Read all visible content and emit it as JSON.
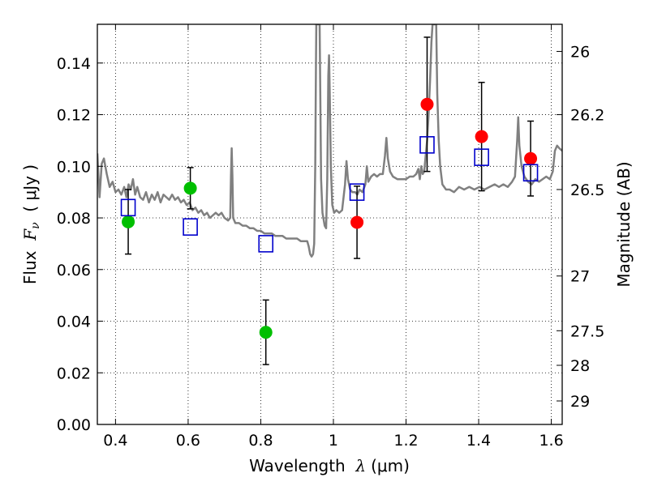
{
  "chart_data": {
    "type": "scatter",
    "xlabel_parts": {
      "prefix": "Wavelength  ",
      "var": "λ",
      "unit": "(μm)"
    },
    "ylabel_parts": {
      "prefix": "Flux  ",
      "var": "F",
      "sub": "ν",
      "unit": "  ( μJy )"
    },
    "ylabel_right": "Magnitude (AB)",
    "xlim": [
      0.35,
      1.63
    ],
    "ylim": [
      0.0,
      0.155
    ],
    "grid": true,
    "x_ticks": [
      {
        "value": 0.4,
        "label": "0.4"
      },
      {
        "value": 0.6,
        "label": "0.6"
      },
      {
        "value": 0.8,
        "label": "0.8"
      },
      {
        "value": 1.0,
        "label": "1"
      },
      {
        "value": 1.2,
        "label": "1.2"
      },
      {
        "value": 1.4,
        "label": "1.4"
      },
      {
        "value": 1.6,
        "label": "1.6"
      }
    ],
    "y_ticks": [
      {
        "value": 0.0,
        "label": "0.00"
      },
      {
        "value": 0.02,
        "label": "0.02"
      },
      {
        "value": 0.04,
        "label": "0.04"
      },
      {
        "value": 0.06,
        "label": "0.06"
      },
      {
        "value": 0.08,
        "label": "0.08"
      },
      {
        "value": 0.1,
        "label": "0.10"
      },
      {
        "value": 0.12,
        "label": "0.12"
      },
      {
        "value": 0.14,
        "label": "0.14"
      }
    ],
    "right_ticks": [
      {
        "flux": 0.1445,
        "label": "26"
      },
      {
        "flux": 0.12,
        "label": "26.2"
      },
      {
        "flux": 0.091,
        "label": "26.5"
      },
      {
        "flux": 0.0575,
        "label": "27"
      },
      {
        "flux": 0.0363,
        "label": "27.5"
      },
      {
        "flux": 0.0229,
        "label": "28"
      },
      {
        "flux": 0.0091,
        "label": "29"
      }
    ],
    "series": [
      {
        "marker": "circle",
        "color": "#00bf00",
        "points": [
          {
            "x": 0.435,
            "y": 0.0785,
            "err": 0.0125
          },
          {
            "x": 0.606,
            "y": 0.0915,
            "err": 0.008
          },
          {
            "x": 0.814,
            "y": 0.0357,
            "err": 0.0125
          }
        ]
      },
      {
        "marker": "circle",
        "color": "#ff0000",
        "points": [
          {
            "x": 1.065,
            "y": 0.0783,
            "err": 0.014
          },
          {
            "x": 1.258,
            "y": 0.124,
            "err": 0.026
          },
          {
            "x": 1.408,
            "y": 0.1115,
            "err": 0.021
          },
          {
            "x": 1.543,
            "y": 0.103,
            "err": 0.0145
          }
        ]
      },
      {
        "marker": "square-open",
        "color": "#0000cc",
        "points": [
          {
            "x": 0.435,
            "y": 0.084
          },
          {
            "x": 0.606,
            "y": 0.0765
          },
          {
            "x": 0.814,
            "y": 0.07
          },
          {
            "x": 1.065,
            "y": 0.09
          },
          {
            "x": 1.258,
            "y": 0.1083
          },
          {
            "x": 1.408,
            "y": 0.1035
          },
          {
            "x": 1.543,
            "y": 0.0975
          }
        ]
      },
      {
        "marker": "line",
        "color": "#808080",
        "points": [
          [
            0.35,
            0.105
          ],
          [
            0.356,
            0.088
          ],
          [
            0.362,
            0.101
          ],
          [
            0.368,
            0.103
          ],
          [
            0.376,
            0.097
          ],
          [
            0.384,
            0.092
          ],
          [
            0.392,
            0.094
          ],
          [
            0.4,
            0.09
          ],
          [
            0.408,
            0.091
          ],
          [
            0.416,
            0.089
          ],
          [
            0.424,
            0.092
          ],
          [
            0.43,
            0.088
          ],
          [
            0.436,
            0.093
          ],
          [
            0.442,
            0.091
          ],
          [
            0.448,
            0.095
          ],
          [
            0.454,
            0.089
          ],
          [
            0.46,
            0.092
          ],
          [
            0.468,
            0.088
          ],
          [
            0.476,
            0.087
          ],
          [
            0.484,
            0.09
          ],
          [
            0.492,
            0.086
          ],
          [
            0.5,
            0.089
          ],
          [
            0.508,
            0.087
          ],
          [
            0.516,
            0.09
          ],
          [
            0.524,
            0.086
          ],
          [
            0.532,
            0.089
          ],
          [
            0.54,
            0.088
          ],
          [
            0.548,
            0.087
          ],
          [
            0.556,
            0.089
          ],
          [
            0.564,
            0.087
          ],
          [
            0.572,
            0.088
          ],
          [
            0.58,
            0.086
          ],
          [
            0.588,
            0.087
          ],
          [
            0.596,
            0.085
          ],
          [
            0.604,
            0.086
          ],
          [
            0.612,
            0.083
          ],
          [
            0.62,
            0.084
          ],
          [
            0.628,
            0.082
          ],
          [
            0.636,
            0.083
          ],
          [
            0.644,
            0.081
          ],
          [
            0.652,
            0.082
          ],
          [
            0.66,
            0.08
          ],
          [
            0.668,
            0.081
          ],
          [
            0.676,
            0.082
          ],
          [
            0.684,
            0.081
          ],
          [
            0.692,
            0.082
          ],
          [
            0.7,
            0.08
          ],
          [
            0.71,
            0.079
          ],
          [
            0.716,
            0.08
          ],
          [
            0.718,
            0.096
          ],
          [
            0.72,
            0.107
          ],
          [
            0.722,
            0.096
          ],
          [
            0.724,
            0.08
          ],
          [
            0.73,
            0.078
          ],
          [
            0.74,
            0.078
          ],
          [
            0.75,
            0.077
          ],
          [
            0.76,
            0.077
          ],
          [
            0.77,
            0.076
          ],
          [
            0.78,
            0.076
          ],
          [
            0.79,
            0.075
          ],
          [
            0.8,
            0.075
          ],
          [
            0.81,
            0.074
          ],
          [
            0.82,
            0.074
          ],
          [
            0.83,
            0.074
          ],
          [
            0.84,
            0.073
          ],
          [
            0.85,
            0.073
          ],
          [
            0.86,
            0.073
          ],
          [
            0.87,
            0.072
          ],
          [
            0.88,
            0.072
          ],
          [
            0.89,
            0.072
          ],
          [
            0.9,
            0.072
          ],
          [
            0.91,
            0.071
          ],
          [
            0.92,
            0.071
          ],
          [
            0.928,
            0.071
          ],
          [
            0.932,
            0.069
          ],
          [
            0.936,
            0.066
          ],
          [
            0.94,
            0.065
          ],
          [
            0.944,
            0.066
          ],
          [
            0.947,
            0.07
          ],
          [
            0.95,
            0.1
          ],
          [
            0.952,
            0.14
          ],
          [
            0.953,
            0.155
          ],
          [
            0.962,
            0.155
          ],
          [
            0.964,
            0.125
          ],
          [
            0.966,
            0.095
          ],
          [
            0.97,
            0.082
          ],
          [
            0.976,
            0.077
          ],
          [
            0.98,
            0.076
          ],
          [
            0.983,
            0.095
          ],
          [
            0.986,
            0.135
          ],
          [
            0.988,
            0.143
          ],
          [
            0.99,
            0.128
          ],
          [
            0.993,
            0.1
          ],
          [
            0.997,
            0.085
          ],
          [
            1.002,
            0.082
          ],
          [
            1.008,
            0.083
          ],
          [
            1.016,
            0.082
          ],
          [
            1.024,
            0.083
          ],
          [
            1.032,
            0.093
          ],
          [
            1.036,
            0.102
          ],
          [
            1.04,
            0.095
          ],
          [
            1.046,
            0.091
          ],
          [
            1.052,
            0.09
          ],
          [
            1.06,
            0.09
          ],
          [
            1.066,
            0.089
          ],
          [
            1.072,
            0.091
          ],
          [
            1.08,
            0.09
          ],
          [
            1.088,
            0.093
          ],
          [
            1.092,
            0.1
          ],
          [
            1.096,
            0.094
          ],
          [
            1.104,
            0.096
          ],
          [
            1.112,
            0.097
          ],
          [
            1.12,
            0.096
          ],
          [
            1.128,
            0.097
          ],
          [
            1.136,
            0.097
          ],
          [
            1.142,
            0.104
          ],
          [
            1.146,
            0.111
          ],
          [
            1.15,
            0.103
          ],
          [
            1.156,
            0.098
          ],
          [
            1.164,
            0.096
          ],
          [
            1.176,
            0.095
          ],
          [
            1.188,
            0.095
          ],
          [
            1.2,
            0.095
          ],
          [
            1.21,
            0.096
          ],
          [
            1.22,
            0.096
          ],
          [
            1.228,
            0.097
          ],
          [
            1.234,
            0.099
          ],
          [
            1.238,
            0.095
          ],
          [
            1.242,
            0.1
          ],
          [
            1.246,
            0.097
          ],
          [
            1.25,
            0.098
          ],
          [
            1.254,
            0.104
          ],
          [
            1.258,
            0.11
          ],
          [
            1.262,
            0.12
          ],
          [
            1.266,
            0.133
          ],
          [
            1.27,
            0.148
          ],
          [
            1.273,
            0.155
          ],
          [
            1.283,
            0.155
          ],
          [
            1.286,
            0.128
          ],
          [
            1.29,
            0.11
          ],
          [
            1.294,
            0.1
          ],
          [
            1.3,
            0.093
          ],
          [
            1.31,
            0.091
          ],
          [
            1.32,
            0.091
          ],
          [
            1.332,
            0.09
          ],
          [
            1.346,
            0.092
          ],
          [
            1.36,
            0.091
          ],
          [
            1.374,
            0.092
          ],
          [
            1.388,
            0.091
          ],
          [
            1.402,
            0.092
          ],
          [
            1.416,
            0.091
          ],
          [
            1.43,
            0.092
          ],
          [
            1.444,
            0.093
          ],
          [
            1.456,
            0.092
          ],
          [
            1.468,
            0.093
          ],
          [
            1.48,
            0.092
          ],
          [
            1.492,
            0.094
          ],
          [
            1.5,
            0.096
          ],
          [
            1.506,
            0.11
          ],
          [
            1.509,
            0.119
          ],
          [
            1.512,
            0.108
          ],
          [
            1.518,
            0.1
          ],
          [
            1.526,
            0.096
          ],
          [
            1.536,
            0.094
          ],
          [
            1.546,
            0.093
          ],
          [
            1.556,
            0.095
          ],
          [
            1.566,
            0.094
          ],
          [
            1.576,
            0.095
          ],
          [
            1.586,
            0.096
          ],
          [
            1.596,
            0.095
          ],
          [
            1.604,
            0.098
          ],
          [
            1.61,
            0.106
          ],
          [
            1.616,
            0.108
          ],
          [
            1.622,
            0.107
          ],
          [
            1.63,
            0.106
          ]
        ]
      }
    ]
  }
}
